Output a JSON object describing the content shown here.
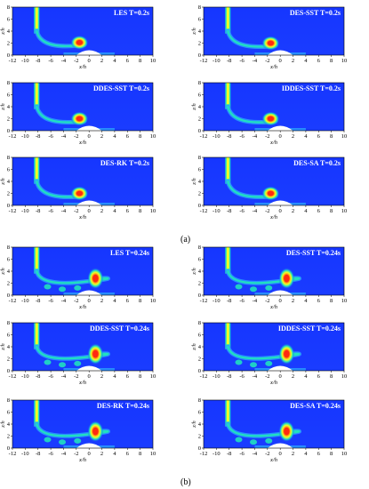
{
  "axis": {
    "xlabel": "x/h",
    "ylabel": "z/h",
    "xticks": [
      "-12",
      "-10",
      "-8",
      "-6",
      "-4",
      "-2",
      "0",
      "2",
      "4",
      "6",
      "8",
      "10"
    ],
    "yticks": [
      "0",
      "2",
      "4",
      "6",
      "8"
    ]
  },
  "groups": [
    {
      "caption": "(a)",
      "panels": [
        {
          "title": "LES  T=0.2s",
          "vortex_x": -1.5,
          "vortex_z": 2.1
        },
        {
          "title": "DES-SST  T=0.2s",
          "vortex_x": -1.5,
          "vortex_z": 2.0
        },
        {
          "title": "DDES-SST  T=0.2s",
          "vortex_x": -1.5,
          "vortex_z": 2.0
        },
        {
          "title": "IDDES-SST  T=0.2s",
          "vortex_x": -1.5,
          "vortex_z": 2.0
        },
        {
          "title": "DES-RK  T=0.2s",
          "vortex_x": -1.5,
          "vortex_z": 2.0
        },
        {
          "title": "DES-SA  T=0.2s",
          "vortex_x": -1.5,
          "vortex_z": 2.0
        }
      ]
    },
    {
      "caption": "(b)",
      "panels": [
        {
          "title": "LES  T=0.24s",
          "vortex_x": 1.0,
          "vortex_z": 2.8
        },
        {
          "title": "DES-SST  T=0.24s",
          "vortex_x": 1.0,
          "vortex_z": 2.8
        },
        {
          "title": "DDES-SST  T=0.24s",
          "vortex_x": 1.0,
          "vortex_z": 2.8
        },
        {
          "title": "IDDES-SST  T=0.24s",
          "vortex_x": 1.0,
          "vortex_z": 2.8
        },
        {
          "title": "DES-RK  T=0.24s",
          "vortex_x": 1.0,
          "vortex_z": 2.8
        },
        {
          "title": "DES-SA  T=0.24s",
          "vortex_x": 1.0,
          "vortex_z": 2.8
        }
      ]
    }
  ],
  "colors": {
    "background": "#1a3cff",
    "low": "#2aa0ff",
    "mid": "#20e0c0",
    "high": "#f6ff20",
    "peak": "#ff2a10",
    "hill": "#ffffff"
  }
}
